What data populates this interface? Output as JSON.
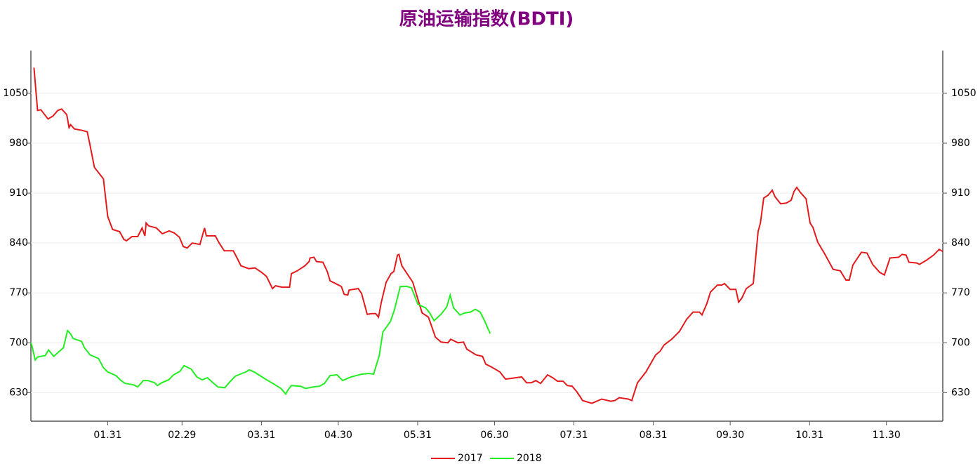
{
  "chart_data": {
    "type": "line",
    "title": "原油运输指数(BDTI)",
    "xlim": [
      1,
      357
    ],
    "ylim": [
      590,
      1110
    ],
    "xticks": [
      {
        "value": 31,
        "label": "01.31"
      },
      {
        "value": 60,
        "label": "02.29"
      },
      {
        "value": 91,
        "label": "03.31"
      },
      {
        "value": 121,
        "label": "04.30"
      },
      {
        "value": 152,
        "label": "05.31"
      },
      {
        "value": 182,
        "label": "06.30"
      },
      {
        "value": 213,
        "label": "07.31"
      },
      {
        "value": 244,
        "label": "08.31"
      },
      {
        "value": 274,
        "label": "09.30"
      },
      {
        "value": 305,
        "label": "10.31"
      },
      {
        "value": 335,
        "label": "11.30"
      }
    ],
    "yticks": [
      630,
      700,
      770,
      840,
      910,
      980,
      1050
    ],
    "grid": true,
    "series": [
      {
        "name": "2017",
        "color": "#e41a1c",
        "x": [
          2.2,
          3.6,
          4.9,
          7.7,
          9.6,
          11.5,
          13,
          15,
          15.9,
          16.5,
          18,
          21,
          23,
          24,
          25.8,
          29.3,
          31,
          32.9,
          35.6,
          37.3,
          38.3,
          40.5,
          42.7,
          44.4,
          45.5,
          46,
          47,
          50,
          52.3,
          55,
          57,
          59,
          60.5,
          62,
          64,
          67,
          68.8,
          69.5,
          73,
          74.5,
          76.5,
          80,
          81.5,
          83,
          86,
          88.5,
          91,
          93,
          95.3,
          96.5,
          99,
          102,
          102.7,
          105,
          108,
          109.6,
          110,
          111.5,
          112.5,
          115,
          116.7,
          117.8,
          122.2,
          123.3,
          124.7,
          125.2,
          128.8,
          130.1,
          132.3,
          134.2,
          135.6,
          136.7,
          137.8,
          139.7,
          141.6,
          142.7,
          144.1,
          144.7,
          145.8,
          150.1,
          153.7,
          156.2,
          158.9,
          161.1,
          163.8,
          164.9,
          167.7,
          169.9,
          171.2,
          174.8,
          177.3,
          178.6,
          180.8,
          184.1,
          186.3,
          192.6,
          194.5,
          196.4,
          198.1,
          200,
          202.7,
          204.7,
          206.6,
          208.8,
          210.4,
          212.3,
          214.2,
          216.4,
          220,
          223.8,
          227.4,
          229,
          230.7,
          234.2,
          235.6,
          237.8,
          241.1,
          244.9,
          246.6,
          248.2,
          251.2,
          254.2,
          257,
          259.5,
          262,
          263,
          264.9,
          266.3,
          269,
          270.7,
          271.8,
          274,
          276.2,
          277.3,
          278.6,
          280.3,
          283,
          284.9,
          285.8,
          287.1,
          288.8,
          290.4,
          291.5,
          293.7,
          295.9,
          297.8,
          298.9,
          300,
          301.4,
          303.6,
          305.2,
          306.3,
          308.2,
          311,
          314.2,
          317,
          319.2,
          320.5,
          321.9,
          325.2,
          327.4,
          329.6,
          332.3,
          334.2,
          336.4,
          339.7,
          341.1,
          342.7,
          343.8,
          346.8,
          347.9,
          350.7,
          353.4,
          355.6,
          357
        ],
        "values": [
          1086,
          1026,
          1027,
          1014,
          1018,
          1026,
          1028,
          1020,
          1002,
          1006,
          1000,
          998,
          996,
          979,
          946,
          930,
          877,
          859,
          856,
          845,
          843,
          849,
          849,
          861,
          850,
          868,
          864,
          861,
          853,
          857,
          854,
          848,
          835,
          833,
          840,
          838,
          861,
          850,
          850,
          840,
          829,
          829,
          819,
          808,
          804,
          805,
          799,
          793,
          776,
          780,
          778,
          778,
          797,
          801,
          808,
          814,
          819,
          820,
          814,
          813,
          800,
          787,
          779,
          768,
          767,
          774,
          776,
          769,
          740,
          741,
          741,
          736,
          757,
          785,
          797,
          800,
          823,
          824,
          808,
          785,
          742,
          736,
          708,
          701,
          700,
          705,
          700,
          701,
          691,
          683,
          681,
          670,
          666,
          659,
          649,
          652,
          644,
          644,
          647,
          643,
          655,
          651,
          646,
          646,
          640,
          639,
          631,
          619,
          615,
          621,
          618,
          619,
          623,
          621,
          619,
          644,
          659,
          683,
          688,
          697,
          705,
          716,
          733,
          743,
          743,
          739,
          755,
          771,
          781,
          781,
          783,
          775,
          775,
          757,
          763,
          776,
          783,
          856,
          868,
          903,
          907,
          914,
          905,
          895,
          896,
          900,
          912,
          918,
          911,
          902,
          868,
          862,
          841,
          824,
          803,
          801,
          788,
          788,
          809,
          827,
          826,
          810,
          799,
          795,
          819,
          820,
          824,
          823,
          813,
          812,
          810,
          816,
          823,
          831,
          828
        ]
      },
      {
        "name": "2018",
        "color": "#22ee22",
        "x": [
          1.1,
          2.7,
          3.6,
          4.9,
          6.6,
          7.9,
          9.9,
          11.5,
          13.7,
          15.3,
          16.4,
          17.5,
          20.8,
          21.9,
          24.1,
          27.4,
          29.3,
          31,
          34.2,
          36.2,
          37.8,
          41.1,
          42.7,
          44.9,
          46.6,
          49.3,
          50.4,
          52.1,
          54.8,
          56.7,
          59.2,
          60.8,
          63.6,
          65.8,
          67.9,
          69.9,
          71.8,
          74,
          76.7,
          78.6,
          80.8,
          82.7,
          84.9,
          86.3,
          88.2,
          92.6,
          95.9,
          98.6,
          100.5,
          101.4,
          102.7,
          106.3,
          108.2,
          111.2,
          113.7,
          115.6,
          117.8,
          120.5,
          122.7,
          126,
          130.1,
          132.9,
          134.8,
          137,
          138.4,
          141.4,
          143,
          145.2,
          147.9,
          149.6,
          152.1,
          155.1,
          156.7,
          158.4,
          161.1,
          163.3,
          164.7,
          166,
          168.5,
          170.4,
          172.6,
          174.5,
          176.4,
          178.1,
          180.3
        ],
        "values": [
          700,
          676,
          680,
          681,
          682,
          690,
          681,
          686,
          693,
          717,
          713,
          706,
          702,
          693,
          683,
          678,
          665,
          659,
          654,
          647,
          643,
          641,
          638,
          647,
          647,
          644,
          640,
          644,
          648,
          655,
          660,
          668,
          663,
          652,
          648,
          651,
          645,
          638,
          637,
          645,
          653,
          656,
          659,
          662,
          659,
          649,
          642,
          636,
          628,
          634,
          640,
          639,
          636,
          638,
          639,
          643,
          654,
          655,
          647,
          652,
          656,
          657,
          656,
          682,
          715,
          730,
          747,
          779,
          779,
          777,
          754,
          749,
          742,
          731,
          740,
          750,
          767,
          749,
          739,
          742,
          743,
          747,
          743,
          731,
          713
        ]
      }
    ]
  }
}
